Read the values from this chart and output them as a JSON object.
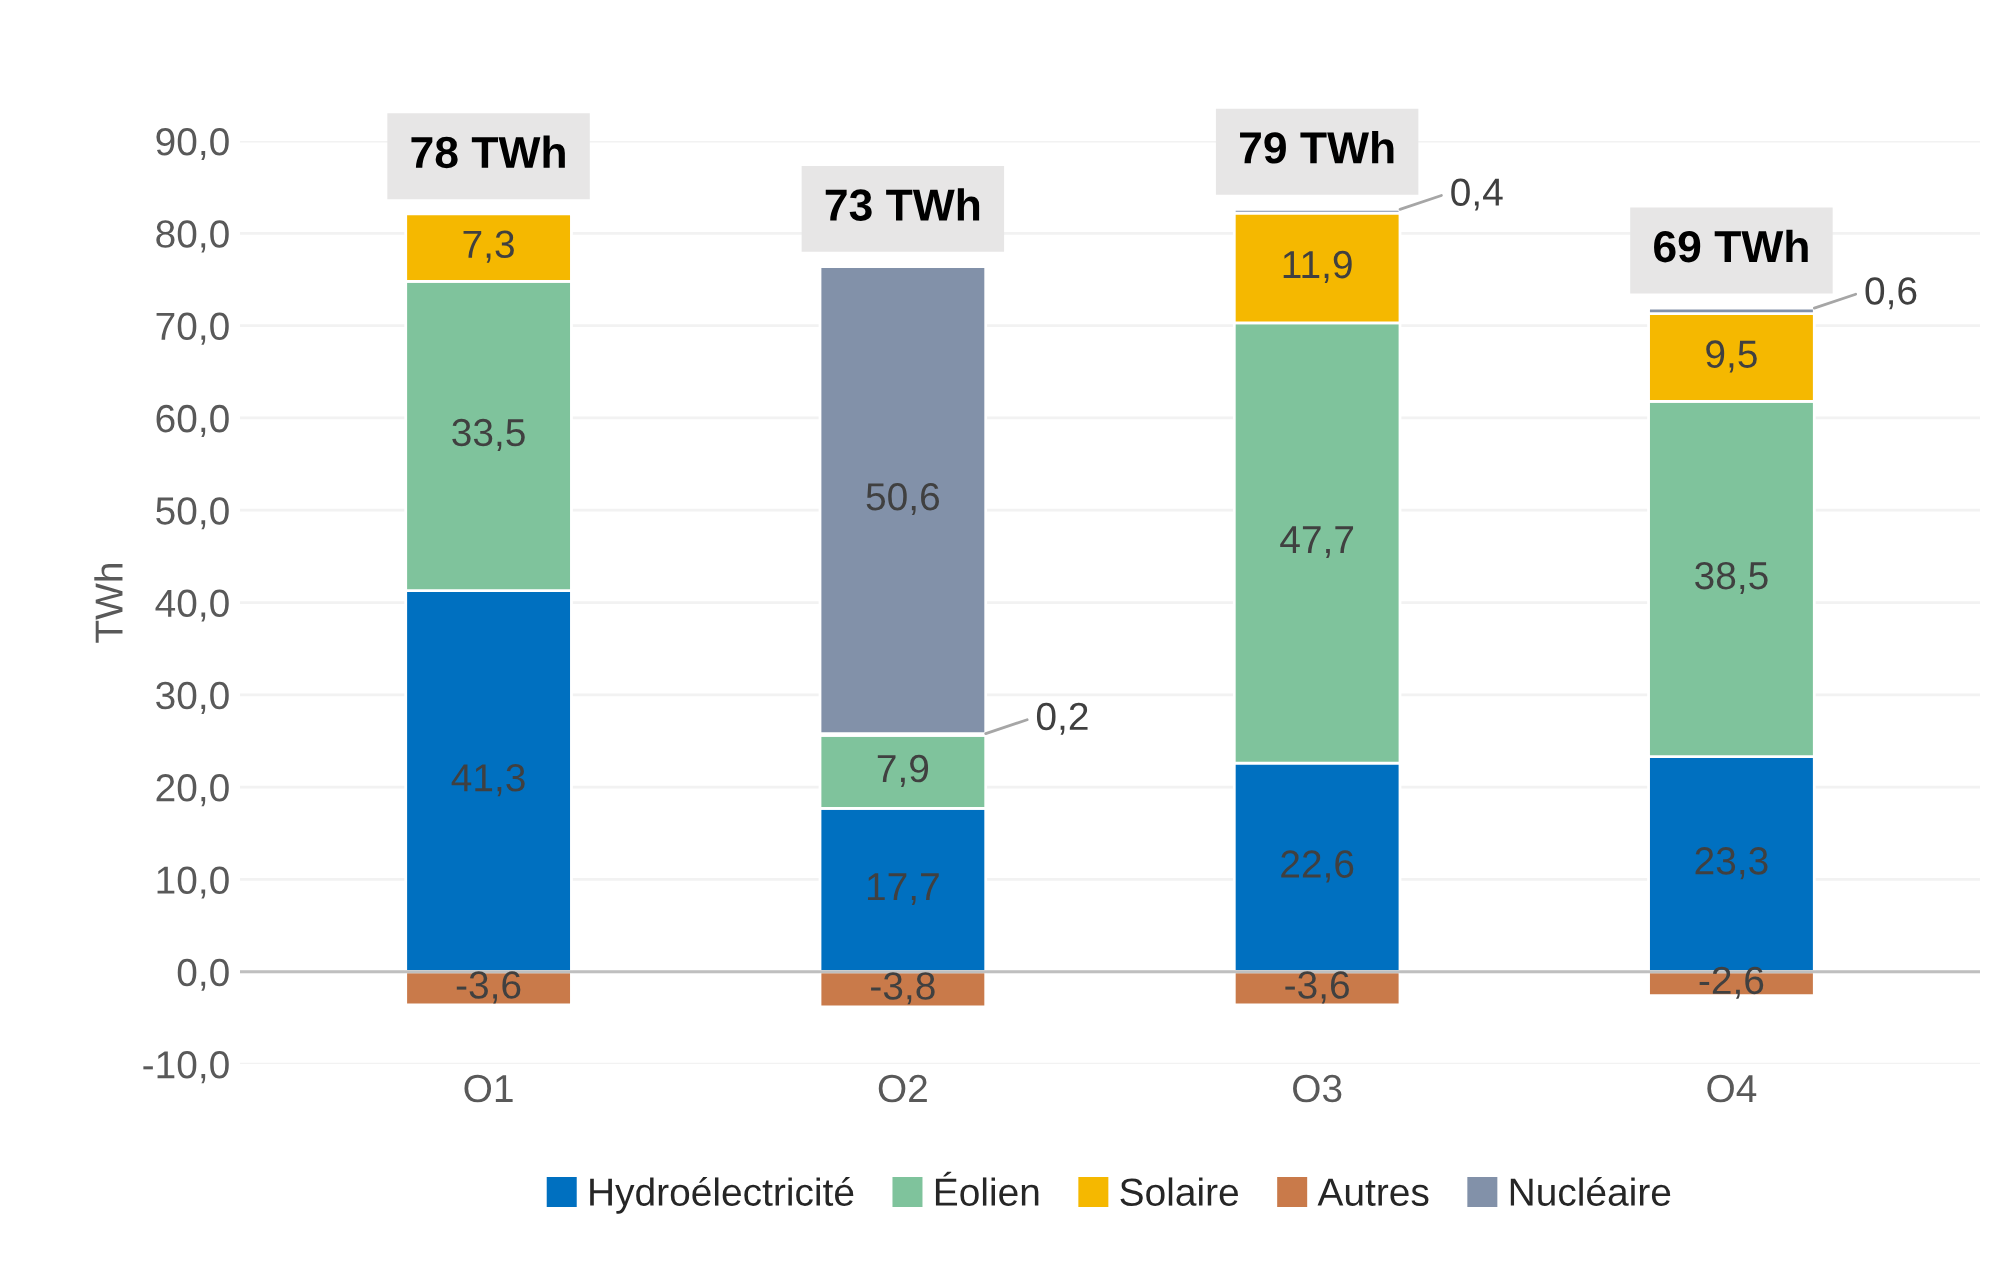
{
  "chart_data": {
    "type": "bar",
    "stacked": true,
    "ylabel": "TWh",
    "categories": [
      "O1",
      "O2",
      "O3",
      "O4"
    ],
    "series": [
      {
        "name": "Hydroélectricité",
        "color": "#0070c0",
        "values": [
          41.3,
          17.7,
          22.6,
          23.3
        ],
        "value_labels": [
          "41,3",
          "17,7",
          "22,6",
          "23,3"
        ]
      },
      {
        "name": "Éolien",
        "color": "#7fc39c",
        "values": [
          33.5,
          7.9,
          47.7,
          38.5
        ],
        "value_labels": [
          "33,5",
          "7,9",
          "47,7",
          "38,5"
        ]
      },
      {
        "name": "Solaire",
        "color": "#f5b800",
        "values": [
          7.3,
          0.2,
          11.9,
          9.5
        ],
        "value_labels": [
          "7,3",
          "0,2",
          "11,9",
          "9,5"
        ]
      },
      {
        "name": "Autres",
        "color": "#c97a4a",
        "values": [
          -3.6,
          -3.8,
          -3.6,
          -2.6
        ],
        "value_labels": [
          "-3,6",
          "-3,8",
          "-3,6",
          "-2,6"
        ]
      },
      {
        "name": "Nucléaire",
        "color": "#8291a9",
        "values": [
          null,
          50.6,
          0.4,
          0.6
        ],
        "value_labels": [
          null,
          "50,6",
          "0,4",
          "0,6"
        ]
      }
    ],
    "totals": [
      "78 TWh",
      "73 TWh",
      "79 TWh",
      "69 TWh"
    ],
    "ylim": [
      -10,
      90
    ],
    "yticks": [
      {
        "value": -10,
        "label": "-10,0"
      },
      {
        "value": 0,
        "label": "0,0"
      },
      {
        "value": 10,
        "label": "10,0"
      },
      {
        "value": 20,
        "label": "20,0"
      },
      {
        "value": 30,
        "label": "30,0"
      },
      {
        "value": 40,
        "label": "40,0"
      },
      {
        "value": 50,
        "label": "50,0"
      },
      {
        "value": 60,
        "label": "60,0"
      },
      {
        "value": 70,
        "label": "70,0"
      },
      {
        "value": 80,
        "label": "80,0"
      },
      {
        "value": 90,
        "label": "90,0"
      }
    ],
    "grid": "y",
    "legend": "bottom"
  }
}
